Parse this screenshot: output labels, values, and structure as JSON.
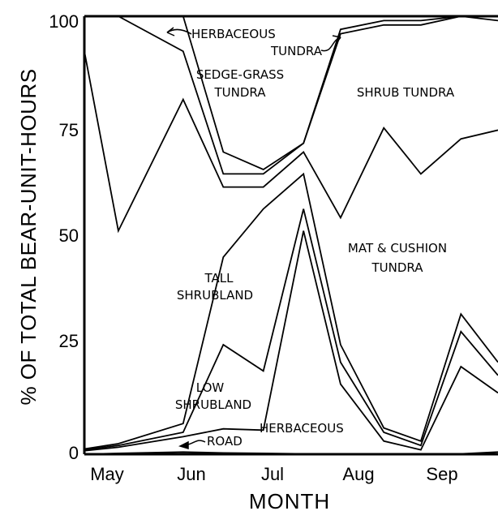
{
  "chart_data": {
    "type": "area",
    "ylabel": "% OF TOTAL BEAR-UNIT-HOURS",
    "xlabel": "MONTH",
    "xticks": [
      "May",
      "Jun",
      "Jul",
      "Aug",
      "Sep"
    ],
    "yticks": [
      "0",
      "25",
      "50",
      "75",
      "100"
    ],
    "ylim": [
      0,
      100
    ],
    "x": [
      0,
      0.55,
      1.6,
      2.25,
      2.9,
      3.55,
      4.15,
      4.85,
      5.45,
      6.1,
      6.7
    ],
    "boundaries": [
      {
        "name": "road_top",
        "values": [
          0,
          0.2,
          0.5,
          0.3,
          0.2,
          0.1,
          0.1,
          0.1,
          0.1,
          0.1,
          0.5
        ]
      },
      {
        "name": "herbaceous_top",
        "values": [
          0.8,
          1.6,
          4.0,
          5.8,
          5.5,
          51,
          16,
          3,
          1,
          20,
          14
        ]
      },
      {
        "name": "low_shrubland_top",
        "values": [
          1.0,
          2.0,
          5.0,
          25,
          19,
          56,
          21,
          5,
          2,
          28,
          18
        ]
      },
      {
        "name": "tall_shrubland_top",
        "values": [
          1.2,
          2.4,
          7.0,
          45,
          56,
          64,
          25,
          6,
          3,
          32,
          21
        ]
      },
      {
        "name": "mat_cushion_tundra_top",
        "values": [
          92,
          51,
          81,
          61,
          61,
          69,
          54,
          74.5,
          64,
          72,
          74
        ]
      },
      {
        "name": "shrub_tundra_top",
        "values": [
          100,
          100,
          92,
          64,
          64,
          71,
          96,
          98,
          98,
          100,
          99
        ]
      },
      {
        "name": "sedge_grass_tundra_top",
        "values": [
          100,
          100,
          100,
          69,
          65,
          71,
          97,
          99,
          99,
          100,
          100
        ]
      }
    ],
    "regions": [
      "HERBACEOUS TUNDRA",
      "SEDGE-GRASS TUNDRA",
      "SHRUB TUNDRA",
      "MAT & CUSHION TUNDRA",
      "TALL SHRUBLAND",
      "LOW SHRUBLAND",
      "HERBACEOUS",
      "ROAD"
    ]
  }
}
